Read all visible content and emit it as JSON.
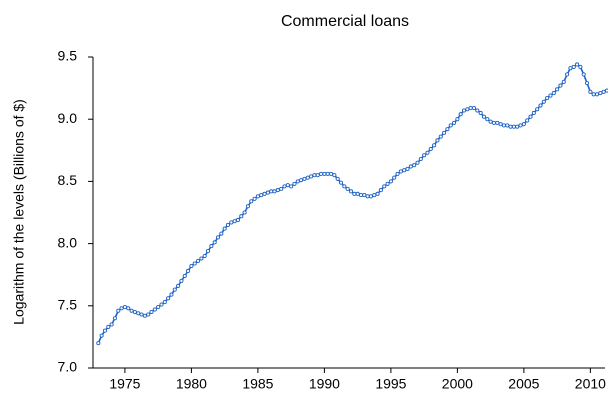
{
  "chart_data": {
    "type": "line",
    "title": "Commercial loans",
    "y_label": "Logarithm of the levels (Billions of $)",
    "x": [
      1973,
      1973.25,
      1973.5,
      1973.75,
      1974,
      1974.25,
      1974.5,
      1974.75,
      1975,
      1975.25,
      1975.5,
      1975.75,
      1976,
      1976.25,
      1976.5,
      1976.75,
      1977,
      1977.25,
      1977.5,
      1977.75,
      1978,
      1978.25,
      1978.5,
      1978.75,
      1979,
      1979.25,
      1979.5,
      1979.75,
      1980,
      1980.25,
      1980.5,
      1980.75,
      1981,
      1981.25,
      1981.5,
      1981.75,
      1982,
      1982.25,
      1982.5,
      1982.75,
      1983,
      1983.25,
      1983.5,
      1983.75,
      1984,
      1984.25,
      1984.5,
      1984.75,
      1985,
      1985.25,
      1985.5,
      1985.75,
      1986,
      1986.25,
      1986.5,
      1986.75,
      1987,
      1987.25,
      1987.5,
      1987.75,
      1988,
      1988.25,
      1988.5,
      1988.75,
      1989,
      1989.25,
      1989.5,
      1989.75,
      1990,
      1990.25,
      1990.5,
      1990.75,
      1991,
      1991.25,
      1991.5,
      1991.75,
      1992,
      1992.25,
      1992.5,
      1992.75,
      1993,
      1993.25,
      1993.5,
      1993.75,
      1994,
      1994.25,
      1994.5,
      1994.75,
      1995,
      1995.25,
      1995.5,
      1995.75,
      1996,
      1996.25,
      1996.5,
      1996.75,
      1997,
      1997.25,
      1997.5,
      1997.75,
      1998,
      1998.25,
      1998.5,
      1998.75,
      1999,
      1999.25,
      1999.5,
      1999.75,
      2000,
      2000.25,
      2000.5,
      2000.75,
      2001,
      2001.25,
      2001.5,
      2001.75,
      2002,
      2002.25,
      2002.5,
      2002.75,
      2003,
      2003.25,
      2003.5,
      2003.75,
      2004,
      2004.25,
      2004.5,
      2004.75,
      2005,
      2005.25,
      2005.5,
      2005.75,
      2006,
      2006.25,
      2006.5,
      2006.75,
      2007,
      2007.25,
      2007.5,
      2007.75,
      2008,
      2008.25,
      2008.5,
      2008.75,
      2009,
      2009.25,
      2009.5,
      2009.75,
      2010,
      2010.25,
      2010.5,
      2010.75,
      2011,
      2011.25
    ],
    "series": [
      {
        "color": "#1f63c6",
        "values": [
          7.2,
          7.26,
          7.3,
          7.33,
          7.35,
          7.4,
          7.46,
          7.48,
          7.49,
          7.48,
          7.46,
          7.45,
          7.44,
          7.43,
          7.42,
          7.43,
          7.45,
          7.47,
          7.49,
          7.51,
          7.53,
          7.56,
          7.59,
          7.63,
          7.66,
          7.7,
          7.74,
          7.78,
          7.82,
          7.84,
          7.86,
          7.88,
          7.9,
          7.94,
          7.98,
          8.01,
          8.05,
          8.08,
          8.12,
          8.15,
          8.17,
          8.18,
          8.19,
          8.22,
          8.25,
          8.3,
          8.34,
          8.36,
          8.38,
          8.39,
          8.4,
          8.41,
          8.42,
          8.42,
          8.43,
          8.44,
          8.46,
          8.47,
          8.46,
          8.48,
          8.5,
          8.51,
          8.52,
          8.53,
          8.54,
          8.55,
          8.55,
          8.56,
          8.56,
          8.56,
          8.56,
          8.55,
          8.52,
          8.49,
          8.46,
          8.44,
          8.42,
          8.4,
          8.4,
          8.39,
          8.39,
          8.38,
          8.38,
          8.39,
          8.4,
          8.43,
          8.46,
          8.48,
          8.5,
          8.53,
          8.56,
          8.58,
          8.59,
          8.6,
          8.62,
          8.63,
          8.65,
          8.68,
          8.71,
          8.73,
          8.76,
          8.79,
          8.83,
          8.86,
          8.89,
          8.92,
          8.95,
          8.97,
          9.0,
          9.04,
          9.07,
          9.08,
          9.09,
          9.09,
          9.07,
          9.05,
          9.02,
          9.0,
          8.98,
          8.97,
          8.97,
          8.96,
          8.95,
          8.95,
          8.94,
          8.94,
          8.94,
          8.95,
          8.96,
          8.99,
          9.02,
          9.05,
          9.08,
          9.11,
          9.14,
          9.17,
          9.19,
          9.21,
          9.24,
          9.27,
          9.3,
          9.36,
          9.41,
          9.42,
          9.44,
          9.42,
          9.36,
          9.29,
          9.22,
          9.2,
          9.2,
          9.21,
          9.22,
          9.23
        ]
      }
    ],
    "xlim": [
      1972.6,
      2011.1
    ],
    "xticks": [
      1975,
      1980,
      1985,
      1990,
      1995,
      2000,
      2005,
      2010
    ],
    "ylim": [
      7.0,
      9.5
    ],
    "yticks": [
      {
        "value": 7.0,
        "label": "7.0"
      },
      7.5,
      {
        "value": 8.0,
        "label": "8.0"
      },
      8.5,
      {
        "value": 9.0,
        "label": "9.0"
      },
      9.5
    ],
    "grid": false,
    "markers": true
  }
}
